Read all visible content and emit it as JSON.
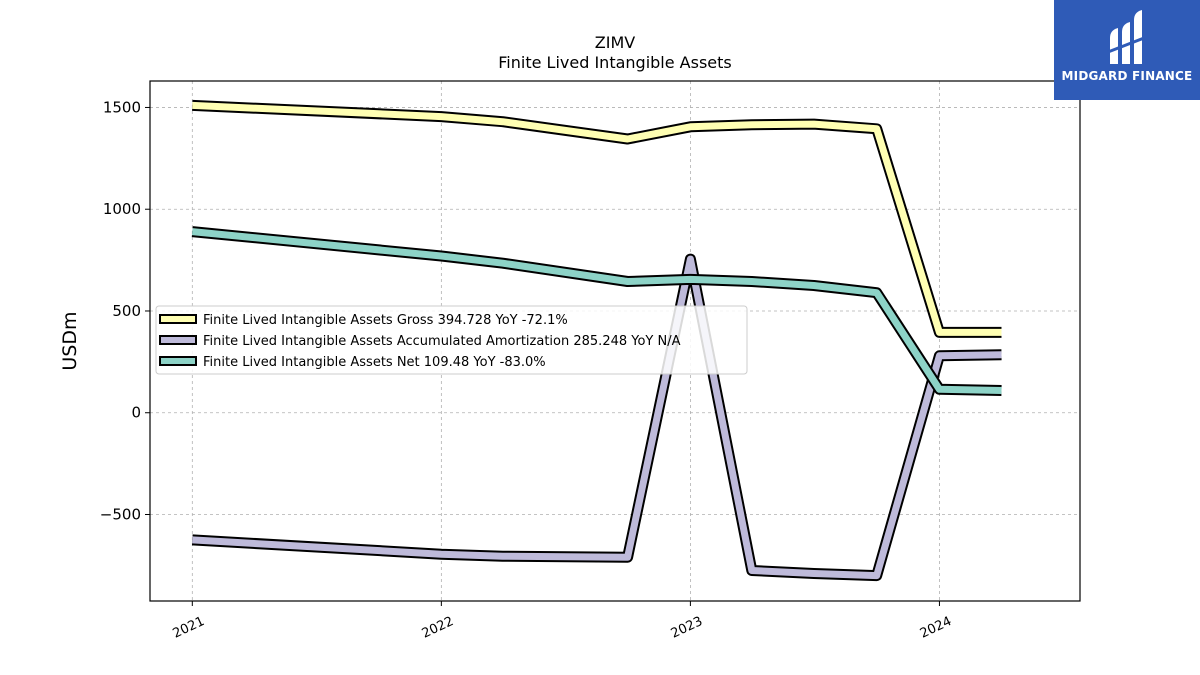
{
  "chart_data": {
    "type": "line",
    "title": "ZIMV",
    "subtitle": "Finite Lived Intangible Assets",
    "ylabel": "USDm",
    "xlabel": "",
    "ylim": [
      -925,
      1630
    ],
    "xlim": [
      "2020-10-31",
      "2024-07-25"
    ],
    "yticks": [
      -500,
      0,
      500,
      1000,
      1500
    ],
    "ytick_labels": [
      "−500",
      "0",
      "500",
      "1000",
      "1500"
    ],
    "xticks": [
      "2021-01-01",
      "2022-01-01",
      "2023-01-01",
      "2024-01-01"
    ],
    "xtick_labels": [
      "2021",
      "2022",
      "2023",
      "2024"
    ],
    "grid": true,
    "legend_position": "center-left",
    "series": [
      {
        "name": "Finite Lived Intangible Assets Gross",
        "legend_label": "Finite Lived Intangible Assets Gross  394.728 YoY -72.1%",
        "color": "#ffffb3",
        "points": [
          [
            "2021-01-01",
            1510
          ],
          [
            "2022-01-01",
            1455
          ],
          [
            "2022-04-01",
            1430
          ],
          [
            "2022-10-01",
            1345
          ],
          [
            "2023-01-01",
            1405
          ],
          [
            "2023-04-01",
            1415
          ],
          [
            "2023-07-01",
            1418
          ],
          [
            "2023-10-01",
            1395
          ],
          [
            "2024-01-01",
            395
          ],
          [
            "2024-04-01",
            394.728
          ]
        ]
      },
      {
        "name": "Finite Lived Intangible Assets Accumulated Amortization",
        "legend_label": "Finite Lived Intangible Assets Accumulated Amortization  285.248 YoY N/A",
        "color": "#bebada",
        "points": [
          [
            "2021-01-01",
            -625
          ],
          [
            "2022-01-01",
            -695
          ],
          [
            "2022-04-01",
            -705
          ],
          [
            "2022-10-01",
            -710
          ],
          [
            "2023-01-01",
            755
          ],
          [
            "2023-04-01",
            -775
          ],
          [
            "2023-07-01",
            -790
          ],
          [
            "2023-10-01",
            -800
          ],
          [
            "2024-01-01",
            280
          ],
          [
            "2024-04-01",
            285.248
          ]
        ]
      },
      {
        "name": "Finite Lived Intangible Assets Net",
        "legend_label": "Finite Lived Intangible Assets Net  109.48 YoY -83.0%",
        "color": "#8dd3c7",
        "points": [
          [
            "2021-01-01",
            890
          ],
          [
            "2022-01-01",
            770
          ],
          [
            "2022-04-01",
            735
          ],
          [
            "2022-10-01",
            645
          ],
          [
            "2023-01-01",
            655
          ],
          [
            "2023-04-01",
            645
          ],
          [
            "2023-07-01",
            625
          ],
          [
            "2023-10-01",
            590
          ],
          [
            "2024-01-01",
            115
          ],
          [
            "2024-04-01",
            109.48
          ]
        ]
      }
    ]
  },
  "logo": {
    "text": "MIDGARD FINANCE",
    "bg_color": "#2f5bb7"
  }
}
